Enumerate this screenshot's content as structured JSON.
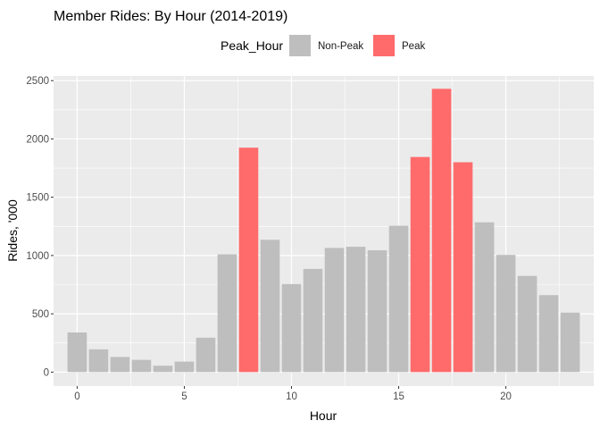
{
  "chart_data": {
    "type": "bar",
    "title": "Member Rides: By Hour (2014-2019)",
    "xlabel": "Hour",
    "ylabel": "Rides, '000",
    "xlim": [
      -1.1,
      24.1
    ],
    "ylim": [
      -120,
      2540
    ],
    "xticks": [
      0,
      5,
      10,
      15,
      20
    ],
    "yticks": [
      0,
      500,
      1000,
      1500,
      2000,
      2500
    ],
    "grid": true,
    "legend": {
      "title": "Peak_Hour",
      "position": "top",
      "entries": [
        {
          "label": "Non-Peak",
          "color": "#bebebe"
        },
        {
          "label": "Peak",
          "color": "#ff6b6b"
        }
      ]
    },
    "colors": {
      "Non-Peak": "#bebebe",
      "Peak": "#ff6b6b",
      "panel": "#ebebeb",
      "grid": "#ffffff"
    },
    "x": [
      0,
      1,
      2,
      3,
      4,
      5,
      6,
      7,
      8,
      9,
      10,
      11,
      12,
      13,
      14,
      15,
      16,
      17,
      18,
      19,
      20,
      21,
      22,
      23
    ],
    "values": [
      340,
      195,
      130,
      105,
      55,
      90,
      295,
      1010,
      1925,
      1135,
      755,
      885,
      1065,
      1075,
      1045,
      1255,
      1845,
      2430,
      1800,
      1285,
      1005,
      825,
      660,
      510
    ],
    "group": [
      "Non-Peak",
      "Non-Peak",
      "Non-Peak",
      "Non-Peak",
      "Non-Peak",
      "Non-Peak",
      "Non-Peak",
      "Non-Peak",
      "Peak",
      "Non-Peak",
      "Non-Peak",
      "Non-Peak",
      "Non-Peak",
      "Non-Peak",
      "Non-Peak",
      "Non-Peak",
      "Peak",
      "Peak",
      "Peak",
      "Non-Peak",
      "Non-Peak",
      "Non-Peak",
      "Non-Peak",
      "Non-Peak"
    ]
  }
}
